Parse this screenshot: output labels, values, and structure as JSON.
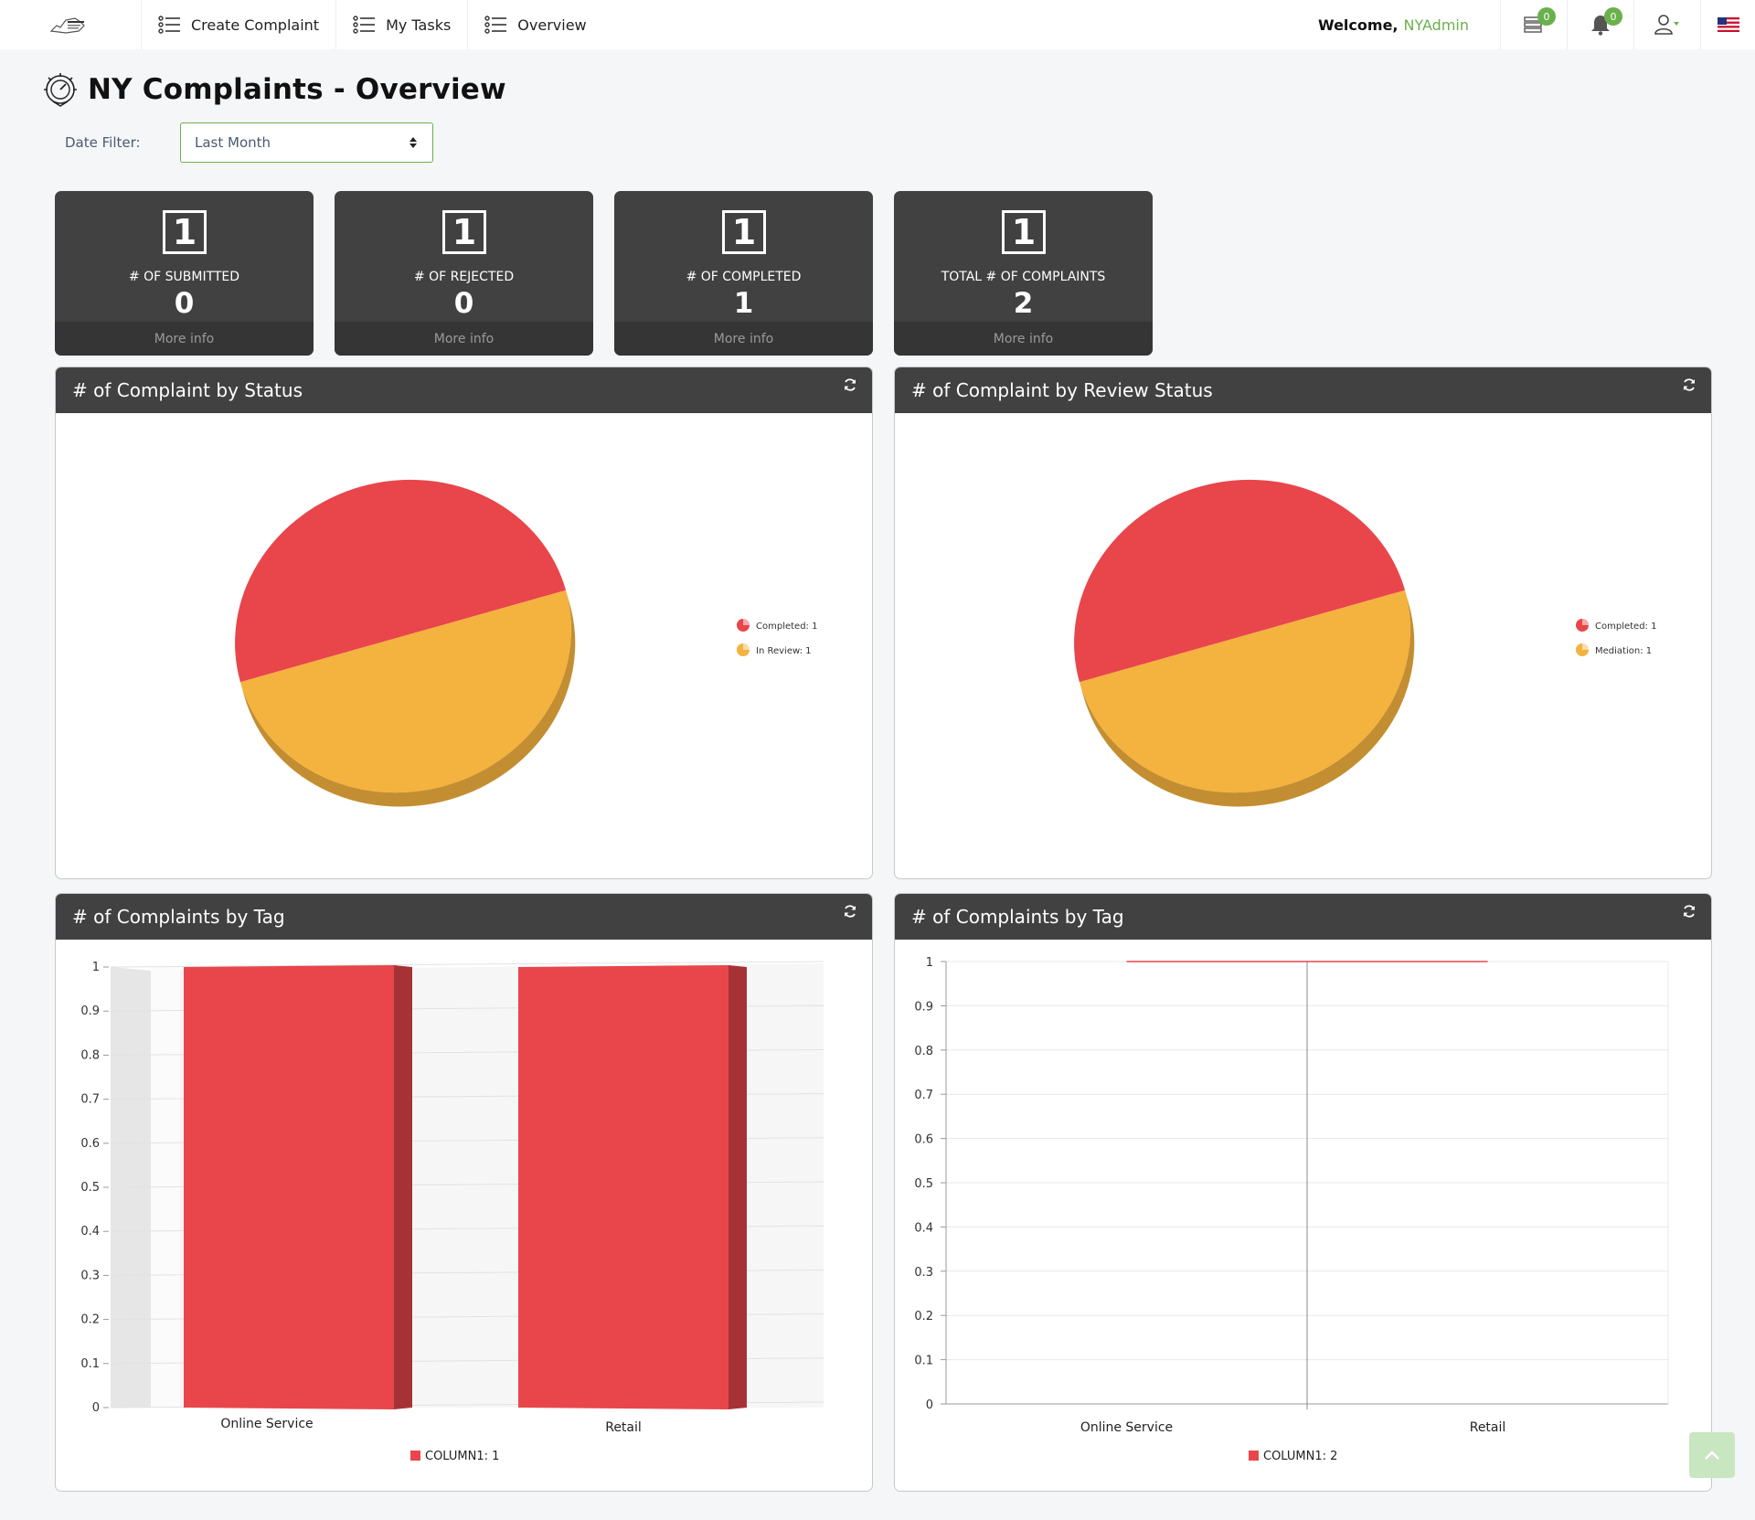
{
  "nav": {
    "items": [
      {
        "label": "Create Complaint"
      },
      {
        "label": "My Tasks"
      },
      {
        "label": "Overview"
      }
    ],
    "welcome_label": "Welcome,",
    "username": "NYAdmin",
    "tasks_badge": "0",
    "notifications_badge": "0"
  },
  "page": {
    "title": "NY Complaints - Overview",
    "date_filter_label": "Date Filter:",
    "date_filter_value": "Last Month"
  },
  "stats": [
    {
      "icon_number": "1",
      "label": "# OF SUBMITTED",
      "value": "0",
      "more": "More info"
    },
    {
      "icon_number": "1",
      "label": "# OF REJECTED",
      "value": "0",
      "more": "More info"
    },
    {
      "icon_number": "1",
      "label": "# OF COMPLETED",
      "value": "1",
      "more": "More info"
    },
    {
      "icon_number": "1",
      "label": "TOTAL # OF COMPLAINTS",
      "value": "2",
      "more": "More info"
    }
  ],
  "panels": {
    "status": {
      "title": "# of Complaint by Status"
    },
    "review": {
      "title": "# of Complaint by Review Status"
    },
    "tag3d": {
      "title": "# of Complaints by Tag"
    },
    "tagline": {
      "title": "# of Complaints by Tag"
    }
  },
  "chart_data": [
    {
      "type": "pie",
      "title": "",
      "slices": [
        {
          "label": "Completed",
          "value": 1,
          "legend": "Completed: 1",
          "color": "#e8464b"
        },
        {
          "label": "In Review",
          "value": 1,
          "legend": "In Review: 1",
          "color": "#f4b23e"
        }
      ]
    },
    {
      "type": "pie",
      "title": "",
      "slices": [
        {
          "label": "Completed",
          "value": 1,
          "legend": "Completed: 1",
          "color": "#e8464b"
        },
        {
          "label": "Mediation",
          "value": 1,
          "legend": "Mediation: 1",
          "color": "#f4b23e"
        }
      ]
    },
    {
      "type": "bar",
      "categories": [
        "Online Service",
        "Retail"
      ],
      "series": [
        {
          "name": "COLUMN1: 1",
          "values": [
            1,
            1
          ],
          "color": "#e8464b"
        }
      ],
      "ylim": [
        0,
        1
      ],
      "yticks": [
        "0",
        "0.1",
        "0.2",
        "0.3",
        "0.4",
        "0.5",
        "0.6",
        "0.7",
        "0.8",
        "0.9",
        "1"
      ],
      "grid": true,
      "legend": "bottom"
    },
    {
      "type": "line",
      "categories": [
        "Online Service",
        "Retail"
      ],
      "series": [
        {
          "name": "COLUMN1: 2",
          "values": [
            1,
            1
          ],
          "color": "#e8464b"
        }
      ],
      "ylim": [
        0,
        1
      ],
      "yticks": [
        "0",
        "0.1",
        "0.2",
        "0.3",
        "0.4",
        "0.5",
        "0.6",
        "0.7",
        "0.8",
        "0.9",
        "1"
      ],
      "grid": true,
      "legend": "bottom"
    }
  ]
}
